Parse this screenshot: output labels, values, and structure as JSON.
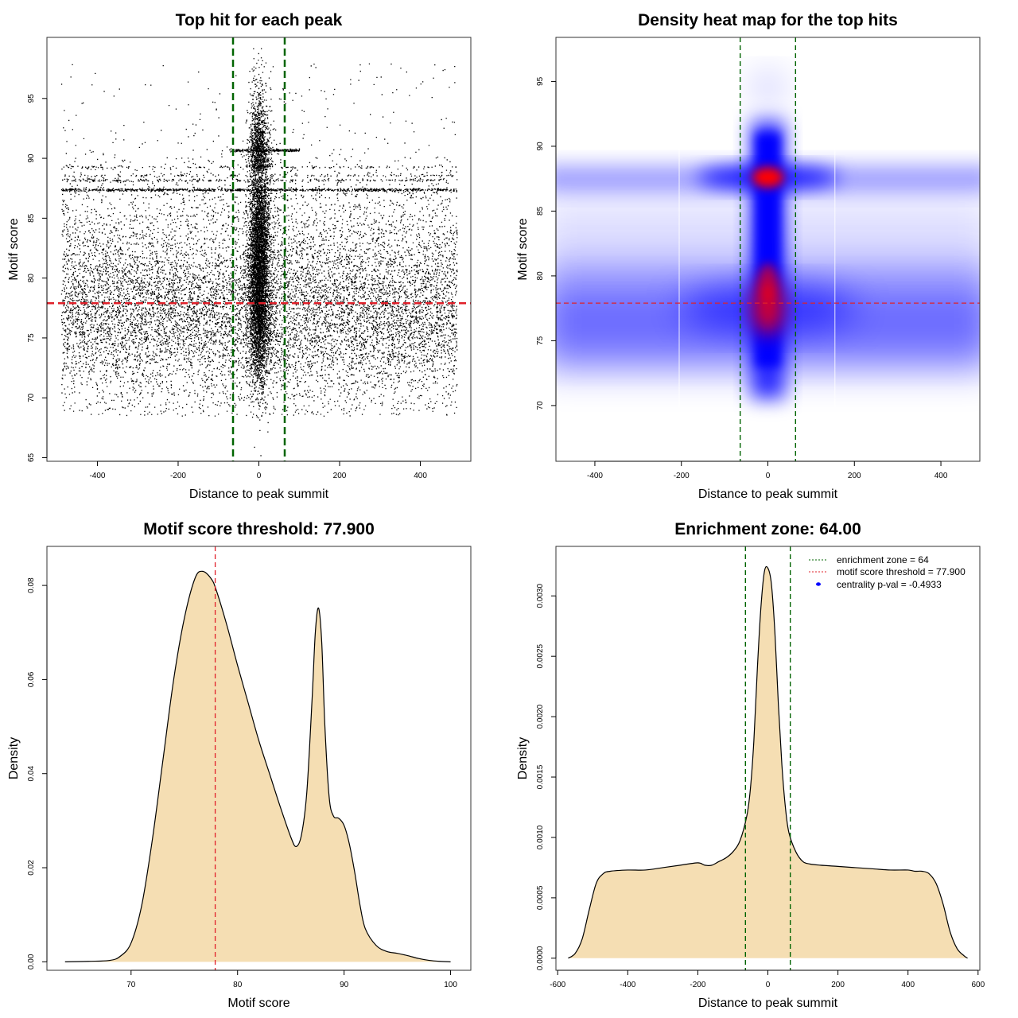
{
  "chart_data": [
    {
      "type": "scatter",
      "title": "Top hit for each peak",
      "xlabel": "Distance to peak summit",
      "ylabel": "Motif score",
      "xlim": [
        -525,
        525
      ],
      "ylim": [
        64.7,
        100.1
      ],
      "x_ticks": [
        "-400",
        "-200",
        "0",
        "200",
        "400"
      ],
      "y_ticks": [
        "65",
        "70",
        "75",
        "80",
        "85",
        "90",
        "95"
      ],
      "vlines": [
        -64,
        64
      ],
      "hline": 77.9,
      "point_summary": {
        "n_points_approx": 20000,
        "x_range": [
          -490,
          490
        ],
        "central_column_x_range": [
          -30,
          30
        ],
        "central_column_y_range": [
          70,
          98
        ],
        "dense_horizontal_bands_y": [
          87.4,
          88.2,
          90.7
        ]
      },
      "colors": {
        "points": "#000000",
        "vlines": "#006400",
        "hline": "#e0202a"
      }
    },
    {
      "type": "heatmap",
      "title": "Density heat map for the top hits",
      "xlabel": "Distance to peak summit",
      "ylabel": "Motif score",
      "xlim": [
        -490,
        490
      ],
      "ylim": [
        65.7,
        98.4
      ],
      "x_ticks": [
        "-400",
        "-200",
        "0",
        "200",
        "400"
      ],
      "y_ticks": [
        "70",
        "75",
        "80",
        "85",
        "90",
        "95"
      ],
      "vlines": [
        -64,
        64
      ],
      "hline": 77.9,
      "density_features": [
        {
          "x": 0,
          "y": 87.6,
          "level": "high"
        },
        {
          "x": 0,
          "y": 77.5,
          "level": "high"
        },
        {
          "x": 0,
          "y": 89,
          "level": "medium"
        },
        {
          "x": 0,
          "y": 83,
          "level": "medium"
        }
      ],
      "colors": {
        "low": "#ffffff",
        "mid": "#0000ff",
        "high": "#ff0000",
        "vlines": "#006400",
        "hline": "#e0202a"
      }
    },
    {
      "type": "area",
      "title": "Motif score threshold: 77.900",
      "xlabel": "Motif score",
      "ylabel": "Density",
      "xlim": [
        62.1,
        101.9
      ],
      "ylim": [
        -0.0018,
        0.0883
      ],
      "x_ticks": [
        "70",
        "80",
        "90",
        "100"
      ],
      "y_ticks": [
        "0.00",
        "0.02",
        "0.04",
        "0.06",
        "0.08"
      ],
      "vline": 77.9,
      "x": [
        63.8,
        66,
        68,
        69,
        70,
        71,
        72,
        73,
        74,
        75,
        76,
        76.7,
        77.5,
        78,
        79,
        80,
        81,
        82,
        83,
        84,
        85,
        85.5,
        86,
        86.5,
        87,
        87.3,
        87.6,
        87.9,
        88.2,
        88.6,
        89,
        89.5,
        90,
        90.5,
        91,
        91.5,
        92,
        93,
        94,
        95,
        96,
        97,
        98,
        99,
        100
      ],
      "y": [
        0,
        0.0001,
        0.0003,
        0.0012,
        0.004,
        0.012,
        0.026,
        0.043,
        0.06,
        0.073,
        0.0815,
        0.083,
        0.0815,
        0.079,
        0.0715,
        0.063,
        0.055,
        0.047,
        0.04,
        0.033,
        0.0265,
        0.0245,
        0.027,
        0.036,
        0.056,
        0.07,
        0.0752,
        0.068,
        0.05,
        0.035,
        0.031,
        0.0305,
        0.029,
        0.025,
        0.019,
        0.012,
        0.007,
        0.0035,
        0.0022,
        0.0018,
        0.0013,
        0.0007,
        0.0003,
        0.0001,
        0
      ],
      "colors": {
        "fill": "#f5deb3",
        "line": "#000000",
        "vline": "#e0202a"
      }
    },
    {
      "type": "area",
      "title": "Enrichment zone: 64.00",
      "xlabel": "Distance to peak summit",
      "ylabel": "Density",
      "xlim": [
        -605,
        605
      ],
      "ylim": [
        -0.0001,
        0.00341
      ],
      "x_ticks": [
        "-600",
        "-400",
        "-200",
        "0",
        "200",
        "400",
        "600"
      ],
      "y_ticks": [
        "0.0000",
        "0.0005",
        "0.0010",
        "0.0015",
        "0.0020",
        "0.0025",
        "0.0030"
      ],
      "vlines": [
        -64,
        64
      ],
      "x": [
        -570,
        -550,
        -530,
        -510,
        -490,
        -470,
        -450,
        -400,
        -350,
        -300,
        -250,
        -200,
        -180,
        -160,
        -140,
        -120,
        -100,
        -80,
        -60,
        -50,
        -40,
        -30,
        -20,
        -10,
        0,
        10,
        20,
        30,
        40,
        50,
        60,
        80,
        100,
        120,
        150,
        200,
        250,
        300,
        350,
        400,
        420,
        440,
        460,
        480,
        500,
        520,
        540,
        560,
        570
      ],
      "y": [
        0,
        4e-05,
        0.00016,
        0.0004,
        0.00062,
        0.0007,
        0.00072,
        0.00073,
        0.00073,
        0.00075,
        0.00077,
        0.00079,
        0.00077,
        0.00077,
        0.0008,
        0.00083,
        0.00088,
        0.00097,
        0.00118,
        0.0014,
        0.0018,
        0.0024,
        0.0029,
        0.0032,
        0.00323,
        0.0031,
        0.0027,
        0.0021,
        0.0016,
        0.00125,
        0.00104,
        0.00088,
        0.0008,
        0.00078,
        0.00077,
        0.00076,
        0.00075,
        0.00074,
        0.00073,
        0.00073,
        0.00072,
        0.00072,
        0.0007,
        0.00062,
        0.00045,
        0.00022,
        8e-05,
        2e-05,
        0
      ],
      "legend": [
        {
          "label": "enrichment zone = 64",
          "style": "dotted",
          "color": "#006400"
        },
        {
          "label": "motif score threshold = 77.900",
          "style": "dotted",
          "color": "#e0202a"
        },
        {
          "label": "centrality p-val = -0.4933",
          "style": "point",
          "color": "#0000ff"
        }
      ],
      "legend_position": "top-right",
      "colors": {
        "fill": "#f5deb3",
        "line": "#000000",
        "vlines": "#006400"
      }
    }
  ]
}
